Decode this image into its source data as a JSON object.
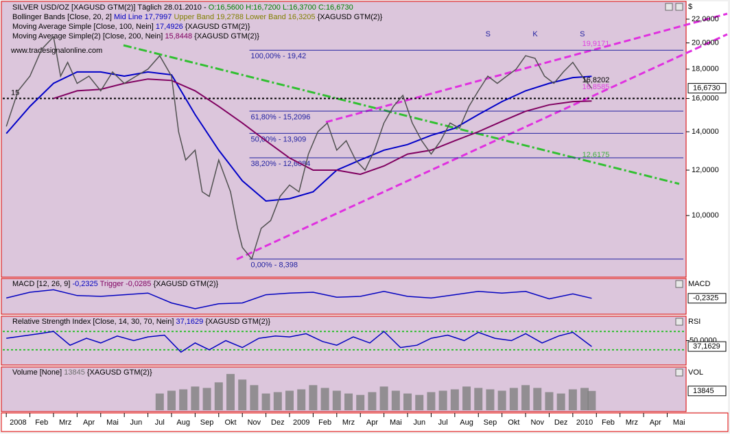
{
  "legend": [
    [
      {
        "text": "SILVER USD/OZ [XAGUSD GTM(2)]  Täglich 28.01.2010 - ",
        "color": "#000000"
      },
      {
        "text": "O:16,5600 H:16,7200 L:16,3700 C:16,6730",
        "color": "#008000"
      }
    ],
    [
      {
        "text": "Bollinger Bands [Close, 20, 2] ",
        "color": "#000000"
      },
      {
        "text": "Mid Line 17,7997 ",
        "color": "#0000c0"
      },
      {
        "text": "Upper Band 19,2788 Lower Band 16,3205 ",
        "color": "#808000"
      },
      {
        "text": "{XAGUSD GTM(2)}",
        "color": "#000000"
      }
    ],
    [
      {
        "text": "Moving Average Simple [Close, 100, Nein] ",
        "color": "#000000"
      },
      {
        "text": "17,4926 ",
        "color": "#0000c0"
      },
      {
        "text": "{XAGUSD GTM(2)}",
        "color": "#000000"
      }
    ],
    [
      {
        "text": "Moving Average Simple(2) [Close, 200, Nein] ",
        "color": "#000000"
      },
      {
        "text": "15,8448 ",
        "color": "#800060"
      },
      {
        "text": "{XAGUSD GTM(2)}",
        "color": "#000000"
      }
    ]
  ],
  "watermark": "www.tradesignalonline.com",
  "axis_unit": "$",
  "months": [
    "2008",
    "Feb",
    "Mrz",
    "Apr",
    "Mai",
    "Jun",
    "Jul",
    "Aug",
    "Sep",
    "Okt",
    "Nov",
    "Dez",
    "2009",
    "Feb",
    "Mrz",
    "Apr",
    "Mai",
    "Jun",
    "Jul",
    "Aug",
    "Sep",
    "Okt",
    "Nov",
    "Dez",
    "2010",
    "Feb",
    "Mrz",
    "Apr",
    "Mai"
  ],
  "xlim": [
    -0.15,
    28.8
  ],
  "main": {
    "log": true,
    "ylim": [
      7.83,
      23.5
    ],
    "yticks": [
      {
        "value": 22,
        "label": "22,0000"
      },
      {
        "value": 20,
        "label": "20,0000"
      },
      {
        "value": 18,
        "label": "18,0000"
      },
      {
        "value": 16,
        "label": "16,0000"
      },
      {
        "value": 14,
        "label": "14,0000"
      },
      {
        "value": 12,
        "label": "12,0000"
      },
      {
        "value": 10,
        "label": "10,0000"
      }
    ],
    "fib": [
      {
        "value": 19.42,
        "label": "100,00% - 19,42"
      },
      {
        "value": 15.2096,
        "label": "61,80% - 15,2096"
      },
      {
        "value": 13.909,
        "label": "50,00% - 13,909"
      },
      {
        "value": 12.6084,
        "label": "38,20% - 12,6084"
      },
      {
        "value": 8.398,
        "label": "0,00% - 8,398"
      }
    ],
    "fib_color": "#2020a0",
    "level": {
      "value": 16,
      "label": "15"
    },
    "last": {
      "value": 16.673,
      "label": "16,6730"
    },
    "notes": [
      {
        "text": "S",
        "x": 20.3,
        "value": 20.7,
        "color": "#2020a0"
      },
      {
        "text": "K",
        "x": 22.3,
        "value": 20.7,
        "color": "#2020a0"
      },
      {
        "text": "S",
        "x": 24.3,
        "value": 20.7,
        "color": "#2020a0"
      },
      {
        "text": "19,9171",
        "x": 24.4,
        "value": 19.9171,
        "color": "#e040e0"
      },
      {
        "text": "16,8202",
        "x": 24.4,
        "value": 17.2,
        "color": "#000000"
      },
      {
        "text": "16,8585",
        "x": 24.4,
        "value": 16.75,
        "color": "#e040e0"
      },
      {
        "text": "12,6175",
        "x": 24.4,
        "value": 12.75,
        "color": "#40b040"
      }
    ],
    "x": [
      0,
      0.5,
      1,
      1.5,
      2,
      2.3,
      2.6,
      3,
      3.5,
      4,
      4.5,
      5,
      5.5,
      6,
      6.5,
      7,
      7.3,
      7.6,
      8,
      8.3,
      8.6,
      9,
      9.5,
      9.8,
      10,
      10.4,
      10.8,
      11.2,
      11.6,
      12,
      12.4,
      12.8,
      13.2,
      13.6,
      14,
      14.4,
      14.8,
      15.2,
      15.6,
      16,
      16.4,
      16.8,
      17.2,
      17.6,
      18,
      18.4,
      18.8,
      19.2,
      19.6,
      20,
      20.4,
      20.8,
      21.2,
      21.6,
      22,
      22.4,
      22.8,
      23.2,
      23.6,
      24,
      24.4,
      24.8
    ],
    "series": [
      {
        "name": "Close",
        "color": "#505050",
        "values": [
          14.3,
          16.5,
          17.5,
          19.5,
          20.5,
          17.5,
          18.5,
          17.0,
          17.5,
          16.5,
          17.8,
          17.0,
          17.5,
          18.0,
          19.0,
          17.5,
          14.0,
          12.5,
          13.0,
          11.0,
          10.8,
          12.5,
          11.0,
          9.5,
          8.8,
          8.4,
          9.5,
          9.8,
          10.8,
          11.3,
          11.0,
          12.8,
          14.0,
          14.5,
          13.0,
          13.5,
          12.5,
          12.0,
          13.0,
          14.5,
          15.5,
          16.2,
          14.5,
          13.5,
          12.8,
          13.5,
          14.5,
          14.2,
          15.5,
          16.5,
          17.5,
          17.0,
          17.5,
          18.0,
          19.0,
          18.8,
          17.5,
          17.0,
          17.8,
          18.5,
          17.5,
          16.67
        ]
      }
    ],
    "ma_x": [
      0,
      1,
      2,
      3,
      4,
      5,
      6,
      7,
      8,
      9,
      10,
      11,
      12,
      13,
      14,
      15,
      16,
      17,
      18,
      19,
      20,
      21,
      22,
      23,
      24,
      24.8
    ],
    "ma": [
      {
        "name": "MA100",
        "color": "#0000c8",
        "values": [
          13.9,
          15.5,
          17.0,
          17.8,
          17.8,
          17.5,
          17.8,
          17.6,
          15.0,
          13.0,
          11.5,
          10.6,
          10.7,
          11.0,
          12.0,
          12.5,
          13.0,
          13.3,
          13.8,
          14.2,
          15.0,
          15.8,
          16.5,
          17.0,
          17.4,
          17.49
        ]
      },
      {
        "name": "MA200",
        "color": "#800060",
        "values": [
          null,
          null,
          16.0,
          16.5,
          16.6,
          17.0,
          17.3,
          17.2,
          16.5,
          15.5,
          14.5,
          13.5,
          12.6,
          12.0,
          12.0,
          11.8,
          12.2,
          12.8,
          13.0,
          13.5,
          14.0,
          14.6,
          15.2,
          15.6,
          15.8,
          15.84
        ]
      }
    ]
  },
  "macd": {
    "title": [
      {
        "text": "MACD [12, 26, 9] ",
        "color": "#000000"
      },
      {
        "text": "-0,2325 ",
        "color": "#0000c0"
      },
      {
        "text": "Trigger ",
        "color": "#800060"
      },
      {
        "text": "-0,0285 ",
        "color": "#800060"
      },
      {
        "text": "{XAGUSD GTM(2)}",
        "color": "#000000"
      }
    ],
    "label": "MACD",
    "last": {
      "value": -0.2325,
      "label": "-0,2325"
    },
    "ylim": [
      -2,
      2
    ],
    "x": [
      0,
      1,
      2,
      3,
      4,
      5,
      6,
      7,
      8,
      9,
      10,
      11,
      12,
      13,
      14,
      15,
      16,
      17,
      18,
      19,
      20,
      21,
      22,
      23,
      24,
      24.8
    ],
    "values": [
      -0.2,
      0.5,
      0.8,
      0.1,
      0.0,
      0.2,
      0.4,
      -0.8,
      -1.5,
      -0.9,
      -0.8,
      0.2,
      0.4,
      0.5,
      -0.1,
      0.0,
      0.6,
      0.0,
      -0.2,
      0.2,
      0.6,
      0.4,
      0.6,
      -0.3,
      0.3,
      -0.23
    ],
    "color": "#0000c0"
  },
  "rsi": {
    "title": [
      {
        "text": "Relative Strength Index [Close, 14, 30, 70, Nein] ",
        "color": "#000000"
      },
      {
        "text": "37,1629 ",
        "color": "#0000c0"
      },
      {
        "text": "{XAGUSD GTM(2)}",
        "color": "#000000"
      }
    ],
    "label": "RSI",
    "mid": {
      "value": 50,
      "label": "50,0000"
    },
    "last": {
      "value": 37.1629,
      "label": "37,1629"
    },
    "ylim": [
      0,
      100
    ],
    "bands": [
      30,
      70
    ],
    "x": [
      0,
      0.7,
      1.4,
      2,
      2.7,
      3.4,
      4,
      4.7,
      5.4,
      6,
      6.7,
      7.4,
      8,
      8.6,
      9.3,
      10,
      10.7,
      11.4,
      12,
      12.7,
      13.4,
      14,
      14.7,
      15.4,
      16,
      16.7,
      17.4,
      18,
      18.7,
      19.4,
      20,
      20.7,
      21.4,
      22,
      22.7,
      23.4,
      24,
      24.8
    ],
    "values": [
      55,
      60,
      65,
      70,
      40,
      55,
      45,
      60,
      50,
      58,
      62,
      25,
      45,
      30,
      50,
      35,
      55,
      60,
      58,
      65,
      48,
      40,
      58,
      45,
      70,
      35,
      40,
      55,
      62,
      50,
      68,
      55,
      50,
      65,
      45,
      60,
      68,
      37.16
    ],
    "color": "#0000c0",
    "band_color": "#30c030"
  },
  "volume": {
    "title": [
      {
        "text": "Volume [None] ",
        "color": "#000000"
      },
      {
        "text": "13845 ",
        "color": "#707070"
      },
      {
        "text": "{XAGUSD GTM(2)}",
        "color": "#000000"
      }
    ],
    "label": "VOL",
    "last": {
      "value": 13845,
      "label": "13845"
    },
    "ylim": [
      0,
      30000
    ],
    "x": [
      6.5,
      7,
      7.5,
      8,
      8.5,
      9,
      9.5,
      10,
      10.5,
      11,
      11.5,
      12,
      12.5,
      13,
      13.5,
      14,
      14.5,
      15,
      15.5,
      16,
      16.5,
      17,
      17.5,
      18,
      18.5,
      19,
      19.5,
      20,
      20.5,
      21,
      21.5,
      22,
      22.5,
      23,
      23.5,
      24,
      24.5,
      24.8
    ],
    "values": [
      12000,
      14000,
      15000,
      17000,
      16000,
      20000,
      26000,
      22000,
      18000,
      12000,
      13000,
      14000,
      15000,
      18000,
      16000,
      14000,
      12000,
      11000,
      13000,
      17000,
      14000,
      12000,
      11000,
      13000,
      14000,
      15000,
      17000,
      16000,
      15000,
      14000,
      16000,
      18000,
      16000,
      13000,
      12000,
      15000,
      16000,
      13845
    ],
    "color": "#808080"
  }
}
